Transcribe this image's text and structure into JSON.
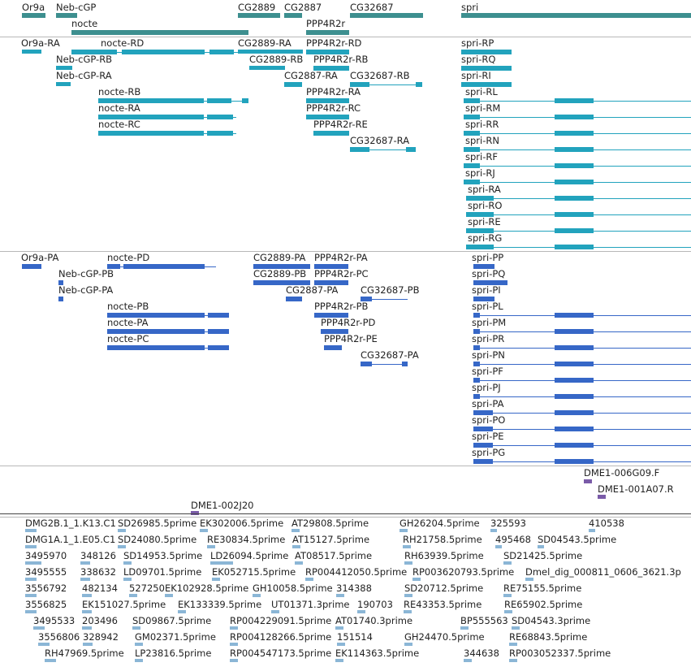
{
  "colors": {
    "gene": "#3d8f8f",
    "transcript": "#22a3bd",
    "protein": "#3667c7",
    "clone": "#7a5ba8",
    "est": "#8bb6d6"
  },
  "gene_track": {
    "labels": [
      "Or9a",
      "Neb-cGP",
      "nocte",
      "CG2889",
      "CG2887",
      "PPP4R2r",
      "CG32687",
      "spri"
    ]
  },
  "transcript_track": {
    "labels": [
      "Or9a-RA",
      "Neb-cGP-RB",
      "Neb-cGP-RA",
      "nocte-RD",
      "nocte-RB",
      "nocte-RA",
      "nocte-RC",
      "CG2889-RA",
      "CG2889-RB",
      "PPP4R2r-RD",
      "PPP4R2r-RB",
      "CG2887-RA",
      "CG32687-RB",
      "PPP4R2r-RA",
      "PPP4R2r-RC",
      "PPP4R2r-RE",
      "CG32687-RA",
      "spri-RP",
      "spri-RQ",
      "spri-RI",
      "spri-RL",
      "spri-RM",
      "spri-RR",
      "spri-RN",
      "spri-RF",
      "spri-RJ",
      "spri-RA",
      "spri-RO",
      "spri-RE",
      "spri-RG"
    ]
  },
  "protein_track": {
    "labels": [
      "Or9a-PA",
      "Neb-cGP-PB",
      "Neb-cGP-PA",
      "nocte-PD",
      "nocte-PB",
      "nocte-PA",
      "nocte-PC",
      "CG2889-PA",
      "CG2889-PB",
      "PPP4R2r-PA",
      "PPP4R2r-PC",
      "CG2887-PA",
      "CG32687-PB",
      "PPP4R2r-PB",
      "PPP4R2r-PD",
      "PPP4R2r-PE",
      "CG32687-PA",
      "spri-PP",
      "spri-PQ",
      "spri-PI",
      "spri-PL",
      "spri-PM",
      "spri-PR",
      "spri-PN",
      "spri-PF",
      "spri-PJ",
      "spri-PA",
      "spri-PO",
      "spri-PE",
      "spri-PG"
    ]
  },
  "clone_track": {
    "labels": [
      "DME1-006G09.F",
      "DME1-001A07.R",
      "DME1-002J20"
    ]
  },
  "est_track": {
    "labels": [
      "DMG2B.1_1.K13.C1",
      "SD26985.5prime",
      "EK302006.5prime",
      "AT29808.5prime",
      "GH26204.5prime",
      "325593",
      "410538",
      "DMG1A.1_1.E05.C1",
      "SD24080.5prime",
      "RE30834.5prime",
      "AT15127.5prime",
      "RH21758.5prime",
      "495468",
      "SD04543.5prime",
      "3495970",
      "348126",
      "SD14953.5prime",
      "LD26094.5prime",
      "AT08517.5prime",
      "RH63939.5prime",
      "SD21425.5prime",
      "3495555",
      "338632",
      "LD09701.5prime",
      "EK052715.5prime",
      "RP004412050.5prime",
      "RP003620793.5prime",
      "Dmel_dig_000811_0606_3621.3p",
      "3556792",
      "482134",
      "527250",
      "EK102928.5prime",
      "GH10058.5prime",
      "314388",
      "SD20712.5prime",
      "RE75155.5prime",
      "3556825",
      "EK151027.5prime",
      "EK133339.5prime",
      "UT01371.3prime",
      "190703",
      "RE43353.5prime",
      "RE65902.5prime",
      "3495533",
      "203496",
      "SD09867.5prime",
      "RP004229091.5prime",
      "AT01740.3prime",
      "BP555563",
      "SD04543.3prime",
      "3556806",
      "328942",
      "GM02371.5prime",
      "RP004128266.5prime",
      "151514",
      "GH24470.5prime",
      "RE68843.5prime",
      "RH47969.5prime",
      "LP23816.5prime",
      "RP004547173.5prime",
      "EK114363.5prime",
      "344638",
      "RP003052337.5prime"
    ]
  }
}
